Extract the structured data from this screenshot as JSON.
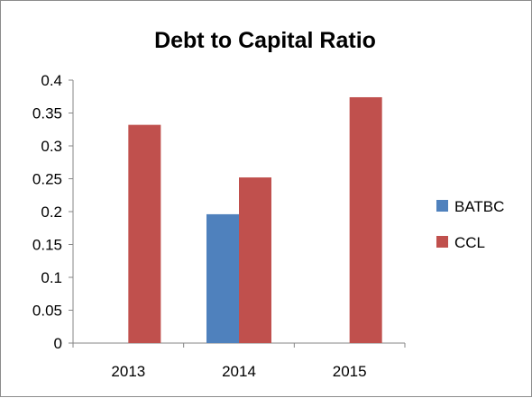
{
  "chart_data": {
    "type": "bar",
    "title": "Debt to Capital Ratio",
    "xlabel": "",
    "ylabel": "",
    "categories": [
      "2013",
      "2014",
      "2015"
    ],
    "series": [
      {
        "name": "BATBC",
        "values": [
          null,
          0.196,
          null
        ],
        "color": "#4f81bd"
      },
      {
        "name": "CCL",
        "values": [
          0.332,
          0.252,
          0.374
        ],
        "color": "#c0504d"
      }
    ],
    "ylim": [
      0,
      0.4
    ],
    "yticks": [
      "0",
      "0.05",
      "0.1",
      "0.15",
      "0.2",
      "0.25",
      "0.3",
      "0.35",
      "0.4"
    ],
    "ytick_values": [
      0,
      0.05,
      0.1,
      0.15,
      0.2,
      0.25,
      0.3,
      0.35,
      0.4
    ],
    "grid": false,
    "legend_position": "right"
  }
}
